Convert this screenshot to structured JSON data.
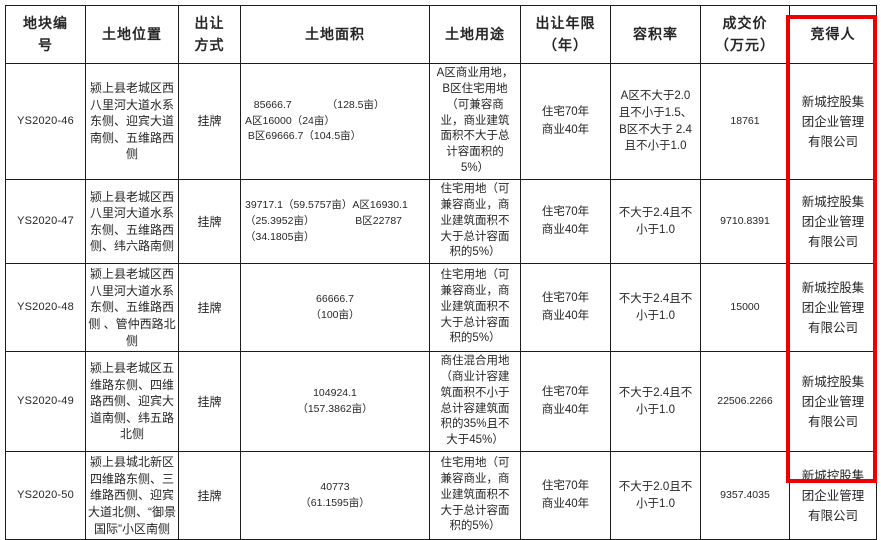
{
  "page": {
    "background_color": "#ffffff",
    "highlight_color": "#ee0000"
  },
  "table": {
    "columns": [
      {
        "key": "plot_id",
        "label": "地块编\n号"
      },
      {
        "key": "location",
        "label": "土地位置"
      },
      {
        "key": "method",
        "label": "出让\n方式"
      },
      {
        "key": "area",
        "label": "土地面积"
      },
      {
        "key": "usage",
        "label": "土地用途"
      },
      {
        "key": "tenure",
        "label": "出让年限\n（年）"
      },
      {
        "key": "far",
        "label": "容积率"
      },
      {
        "key": "price",
        "label": "成交价\n（万元）"
      },
      {
        "key": "winner",
        "label": "竞得人"
      }
    ],
    "rows": [
      {
        "plot_id": "YS2020-46",
        "location": "颍上县老城区西八里河大道水系东侧、迎宾大道南侧、五维路西侧",
        "method": "挂牌",
        "area": "   85666.7            （128.5亩）\nA区16000（24亩）\n B区69666.7（104.5亩）",
        "usage": "A区商业用地，B区住宅用地（可兼容商业，商业建筑面积不大于总计容面积的5%）",
        "tenure": "住宅70年\n商业40年",
        "far": "A区不大于2.0且不小于1.5、B区不大于 2.4且不小于1.0",
        "price": "18761",
        "winner": "新城控股集团企业管理有限公司"
      },
      {
        "plot_id": "YS2020-47",
        "location": "颍上县老城区西八里河大道水系东侧、五维路西侧、纬六路南侧",
        "method": "挂牌",
        "area": "39717.1（59.5757亩）A区16930.1\n（25.3952亩）              B区22787\n（34.1805亩）",
        "usage": "住宅用地（可兼容商业，商业建筑面积不大于总计容面积的5%）",
        "tenure": "住宅70年\n商业40年",
        "far": "不大于2.4且不小于1.0",
        "price": "9710.8391",
        "winner": "新城控股集团企业管理有限公司"
      },
      {
        "plot_id": "YS2020-48",
        "location": "颍上县老城区西八里河大道水系东侧、五维路西侧 、管仲西路北侧",
        "method": "挂牌",
        "area": "66666.7\n（100亩）",
        "usage": "住宅用地（可兼容商业，商业建筑面积不大于总计容面积的5%）",
        "tenure": "住宅70年\n商业40年",
        "far": "不大于2.4且不小于1.0",
        "price": "15000",
        "winner": "新城控股集团企业管理有限公司"
      },
      {
        "plot_id": "YS2020-49",
        "location": "颍上县老城区五维路东侧、四维路西侧、迎宾大道南侧、纬五路北侧",
        "method": "挂牌",
        "area": "104924.1\n（157.3862亩）",
        "usage": "商住混合用地（商业计容建筑面积不小于总计容建筑面积的35%且不大于45%）",
        "tenure": "住宅70年\n商业40年",
        "far": "不大于2.4且不小于1.0",
        "price": "22506.2266",
        "winner": "新城控股集团企业管理有限公司"
      },
      {
        "plot_id": "YS2020-50",
        "location": "颍上县城北新区四维路东侧、三维路西侧、迎宾大道北侧、“御景国际”小区南侧",
        "method": "挂牌",
        "area": "40773\n（61.1595亩）",
        "usage": "住宅用地（可兼容商业，商业建筑面积不大于总计容面积的5%）",
        "tenure": "住宅70年\n商业40年",
        "far": "不大于2.0且不小于1.0",
        "price": "9357.4035",
        "winner": "新城控股集团企业管理有限公司"
      }
    ]
  }
}
